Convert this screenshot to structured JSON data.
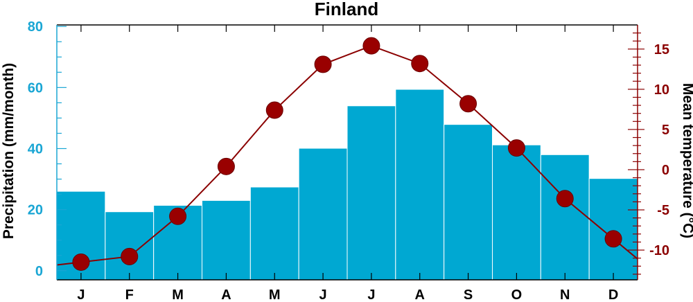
{
  "chart_data": {
    "type": "bar+line",
    "title": "Finland",
    "categories": [
      "J",
      "F",
      "M",
      "A",
      "M",
      "J",
      "J",
      "A",
      "S",
      "O",
      "N",
      "D"
    ],
    "series": [
      {
        "name": "Precipitation (mm/month)",
        "type": "bar",
        "axis": "left",
        "values": [
          26,
          19.3,
          21.4,
          23,
          27.4,
          40.1,
          54,
          59.4,
          47.9,
          41.2,
          38,
          30.2
        ]
      },
      {
        "name": "Mean temperature (°C)",
        "type": "line",
        "axis": "right",
        "values": [
          -11.5,
          -10.8,
          -5.8,
          0.4,
          7.4,
          13.1,
          15.4,
          13.2,
          8.2,
          2.7,
          -3.6,
          -8.6
        ]
      }
    ],
    "ylabel_left": "Precipitation (mm/month)",
    "ylabel_right": "Mean temperature (°C)",
    "ylim_left": [
      -3,
      80.5
    ],
    "ylim_right": [
      -13.7,
      18
    ],
    "yticks_left": [
      "0",
      "20",
      "40",
      "60",
      "80"
    ],
    "yticks_right": [
      "-10",
      "-5",
      "0",
      "5",
      "10",
      "15"
    ],
    "colors": {
      "bars": "#00a8d2",
      "line": "#8b0000",
      "markers": "#990000",
      "left_axis": "#1aa6d4",
      "right_axis": "#8b0000"
    }
  }
}
